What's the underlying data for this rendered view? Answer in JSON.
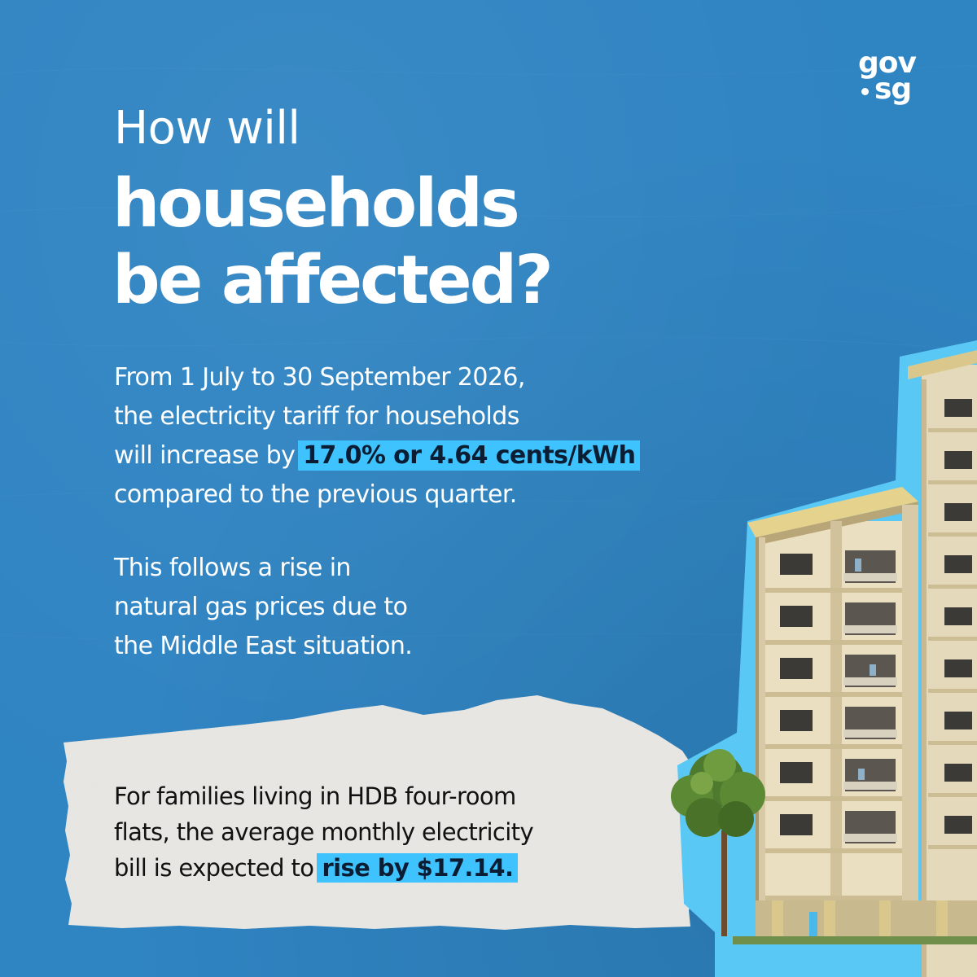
{
  "logo": {
    "line1": "gov",
    "line2": "sg"
  },
  "heading": {
    "line1": "How will",
    "line2": "households",
    "line3": "be affected?"
  },
  "paragraph1": {
    "line1": "From 1 July to 30 September 2026,",
    "line2": "the electricity tariff for households",
    "line3_prefix": "will increase by",
    "line3_highlight": "17.0% or 4.64 cents/kWh",
    "line4": "compared to the previous quarter."
  },
  "paragraph2": {
    "line1": "This follows a rise in",
    "line2": "natural gas prices due to",
    "line3": "the Middle East situation."
  },
  "note": {
    "line1": "For families living in HDB four-room",
    "line2": "flats, the average monthly electricity",
    "line3_prefix": "bill is expected to",
    "line3_highlight": "rise by $17.14."
  },
  "colors": {
    "background": "#2f84c2",
    "highlight": "#3fc3ff",
    "paper": "#e9e8e4"
  }
}
